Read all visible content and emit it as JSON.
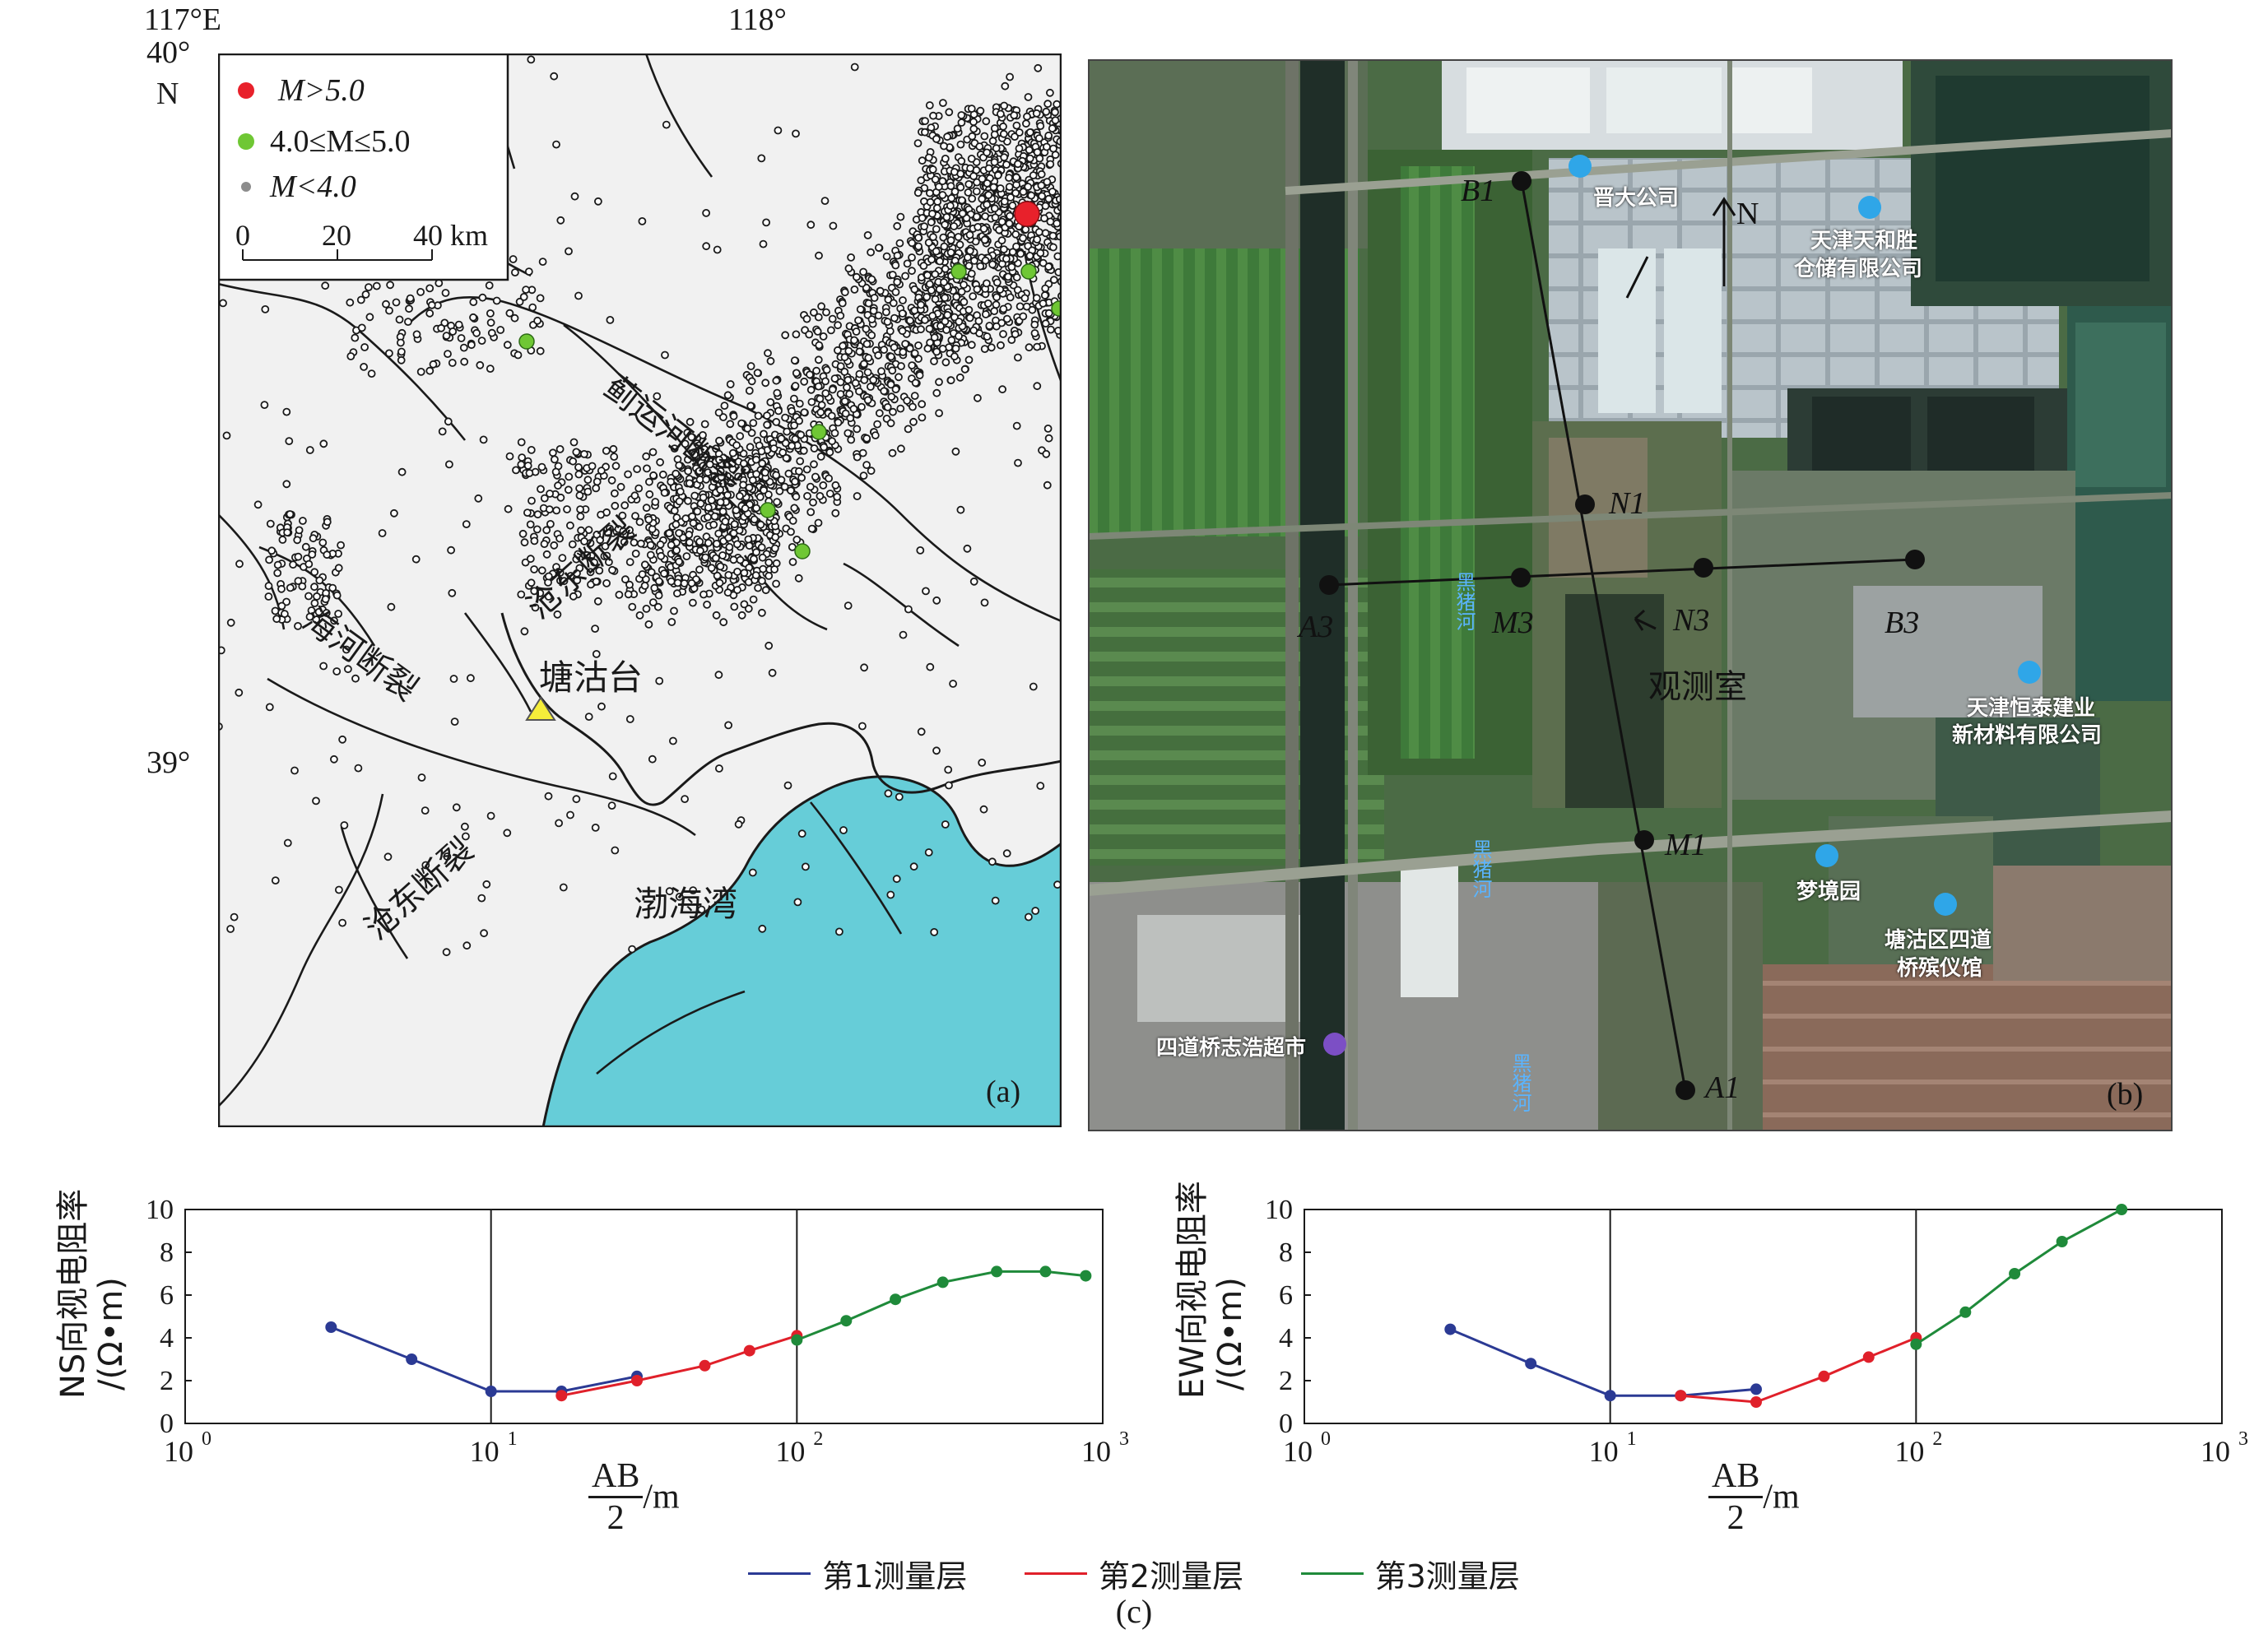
{
  "map_a": {
    "coords": {
      "lon1": "117°E",
      "lon2": "118°",
      "lat1": "40°",
      "lat1_n": "N",
      "lat2": "39°"
    },
    "legend": [
      {
        "label": "M>5.0",
        "color": "#e8212b"
      },
      {
        "label": "4.0≤M≤5.0",
        "color": "#6fc734"
      },
      {
        "label": "M<4.0",
        "color": "#8c8c8c"
      }
    ],
    "scale": {
      "t0": "0",
      "t1": "20",
      "t2": "40 km"
    },
    "fault_labels": [
      "蓟运河断裂",
      "沧东断裂",
      "海河断裂",
      "沧东断裂"
    ],
    "station": "塘沽台",
    "sea": "渤海湾",
    "panel": "(a)",
    "colors": {
      "land": "#f1f1f1",
      "sea": "#66cdd8",
      "station": "#f5ee3a"
    }
  },
  "map_b": {
    "north": "N",
    "electrodes": {
      "B1": "B1",
      "N1": "N1",
      "M1": "M1",
      "A1": "A1",
      "A3": "A3",
      "M3": "M3",
      "N3": "N3",
      "B3": "B3"
    },
    "room": "观测室",
    "pois": [
      "晋大公司",
      "天津天和胜",
      "仓储有限公司",
      "天津恒泰建业",
      "新材料有限公司",
      "梦境园",
      "塘沽区四道",
      "桥殡仪馆",
      "四道桥志浩超市"
    ],
    "road_labels": [
      "黑猪河",
      "黑猪河",
      "黑猪河"
    ],
    "panel": "(b)"
  },
  "chart_data": [
    {
      "type": "line",
      "ylabel_line1": "NS向视电阻率",
      "ylabel_line2": "/(Ω•m)",
      "xlabel_num": "AB",
      "xlabel_den": "2",
      "xlabel_unit": "/m",
      "x_scale": "log",
      "xlim": [
        1,
        1000
      ],
      "ylim": [
        0,
        10
      ],
      "y_ticks": [
        "0",
        "2",
        "4",
        "6",
        "8",
        "10"
      ],
      "x_ticks": [
        {
          "base": "10",
          "exp": "0"
        },
        {
          "base": "10",
          "exp": "1"
        },
        {
          "base": "10",
          "exp": "2"
        },
        {
          "base": "10",
          "exp": "3"
        }
      ],
      "series": [
        {
          "name": "第1测量层",
          "color": "#2b3a94",
          "x": [
            3,
            5.5,
            10,
            17,
            30
          ],
          "y": [
            4.5,
            3.0,
            1.5,
            1.5,
            2.2
          ]
        },
        {
          "name": "第2测量层",
          "color": "#e0202a",
          "x": [
            17,
            30,
            50,
            70,
            100
          ],
          "y": [
            1.3,
            2.0,
            2.7,
            3.4,
            4.1
          ]
        },
        {
          "name": "第3测量层",
          "color": "#1f8a3a",
          "x": [
            100,
            145,
            210,
            300,
            450,
            650,
            880
          ],
          "y": [
            3.9,
            4.8,
            5.8,
            6.6,
            7.1,
            7.1,
            6.9
          ]
        }
      ]
    },
    {
      "type": "line",
      "ylabel_line1": "EW向视电阻率",
      "ylabel_line2": "/(Ω•m)",
      "xlabel_num": "AB",
      "xlabel_den": "2",
      "xlabel_unit": "/m",
      "x_scale": "log",
      "xlim": [
        1,
        1000
      ],
      "ylim": [
        0,
        10
      ],
      "y_ticks": [
        "0",
        "2",
        "4",
        "6",
        "8",
        "10"
      ],
      "x_ticks": [
        {
          "base": "10",
          "exp": "0"
        },
        {
          "base": "10",
          "exp": "1"
        },
        {
          "base": "10",
          "exp": "2"
        },
        {
          "base": "10",
          "exp": "3"
        }
      ],
      "series": [
        {
          "name": "第1测量层",
          "color": "#2b3a94",
          "x": [
            3,
            5.5,
            10,
            17,
            30
          ],
          "y": [
            4.4,
            2.8,
            1.3,
            1.3,
            1.6
          ]
        },
        {
          "name": "第2测量层",
          "color": "#e0202a",
          "x": [
            17,
            30,
            50,
            70,
            100
          ],
          "y": [
            1.3,
            1.0,
            2.2,
            3.1,
            4.0
          ]
        },
        {
          "name": "第3测量层",
          "color": "#1f8a3a",
          "x": [
            100,
            145,
            210,
            300,
            470
          ],
          "y": [
            3.7,
            5.2,
            7.0,
            8.5,
            10.0
          ]
        }
      ]
    }
  ],
  "legend_bottom": [
    {
      "name": "第1测量层",
      "color": "#2b3a94"
    },
    {
      "name": "第2测量层",
      "color": "#e0202a"
    },
    {
      "name": "第3测量层",
      "color": "#1f8a3a"
    }
  ],
  "caption_c": "(c)"
}
